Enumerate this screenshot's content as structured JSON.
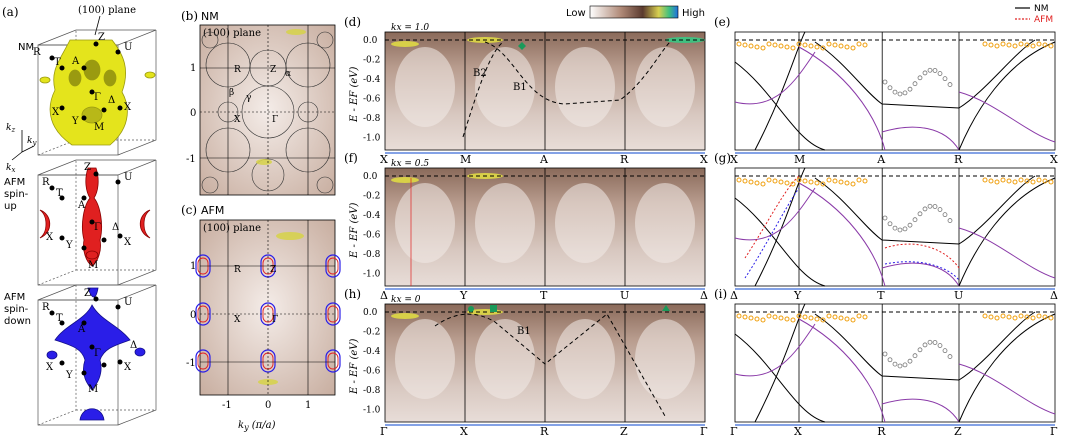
{
  "panels": {
    "a": {
      "label": "(a)",
      "plane_label": "(100) plane",
      "section_labels": [
        "NM",
        "AFM\nspin-\nup",
        "AFM\nspin-\ndown"
      ],
      "axes": [
        "kz",
        "ky",
        "kx"
      ],
      "points_top": [
        "R",
        "Z",
        "U",
        "T",
        "A",
        "Γ",
        "Y",
        "X",
        "Δ",
        "M",
        "X"
      ],
      "points_mid": [
        "Z",
        "R",
        "U",
        "T",
        "A",
        "Γ",
        "Δ",
        "X",
        "Y",
        "X",
        "M"
      ],
      "points_bot": [
        "Z",
        "R",
        "U",
        "T",
        "A",
        "Γ",
        "Δ",
        "X",
        "Y",
        "X",
        "M"
      ],
      "colors": {
        "nm": "#e6e61e",
        "afm_up": "#e02020",
        "afm_down": "#2a1ee8"
      }
    },
    "b": {
      "label": "(b)",
      "title": "NM",
      "plane": "(100) plane",
      "points": {
        "R": "R",
        "Z": "Z",
        "alpha": "α",
        "beta": "β",
        "gamma": "γ",
        "X": "X",
        "G": "Γ"
      }
    },
    "c": {
      "label": "(c)",
      "title": "AFM",
      "plane": "(100) plane",
      "points": {
        "R": "R",
        "Z": "Z",
        "X": "X",
        "G": "Γ"
      }
    },
    "bc_axes": {
      "ylabel": "kz (π/c)",
      "xlabel": "ky (π/a)",
      "yticks_b": [
        "1",
        "0",
        "-1"
      ],
      "yticks_c": [
        "1",
        "0",
        "-1"
      ],
      "xticks": [
        "-1",
        "0",
        "1"
      ]
    },
    "colorbar": {
      "low": "Low",
      "high": "High"
    },
    "d": {
      "label": "(d)",
      "kx": "kx = 1.0",
      "path": [
        "X",
        "M",
        "A",
        "R",
        "X"
      ],
      "bands": [
        "B2",
        "B1"
      ]
    },
    "e": {
      "label": "(e)",
      "path": [
        "X",
        "M",
        "A",
        "R",
        "X"
      ]
    },
    "f": {
      "label": "(f)",
      "kx": "kx = 0.5",
      "path": [
        "Δ",
        "Y",
        "T",
        "U",
        "Δ"
      ]
    },
    "g": {
      "label": "(g)",
      "path": [
        "Δ",
        "Y",
        "T",
        "U",
        "Δ"
      ]
    },
    "h": {
      "label": "(h)",
      "kx": "kx = 0",
      "path": [
        "Γ",
        "X",
        "R",
        "Z",
        "Γ"
      ],
      "bands": [
        "B1"
      ]
    },
    "i": {
      "label": "(i)",
      "path": [
        "Γ",
        "X",
        "R",
        "Z",
        "Γ"
      ]
    },
    "arpes_axes": {
      "ylabel": "E - EF (eV)",
      "yticks": [
        "0.0",
        "-0.2",
        "-0.4",
        "-0.6",
        "-0.8",
        "-1.0"
      ]
    },
    "legend": {
      "nm": "NM",
      "afm": "AFM",
      "nm_color": "#000000",
      "afm_color": "#e02020"
    }
  }
}
